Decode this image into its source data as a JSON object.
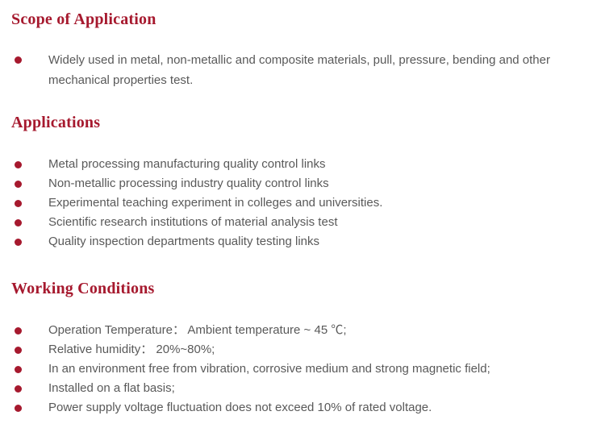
{
  "colors": {
    "heading": "#a6192e",
    "bullet": "#a6192e",
    "body_text": "#595959",
    "page_background": "#ffffff"
  },
  "sections": [
    {
      "heading": "Scope of Application",
      "items": [
        "Widely used in metal, non-metallic and composite materials, pull, pressure, bending and other mechanical properties test."
      ]
    },
    {
      "heading": "Applications",
      "items": [
        "Metal processing manufacturing quality control links",
        "Non-metallic processing industry quality control links",
        "Experimental teaching experiment in colleges and universities.",
        "Scientific research institutions of material analysis test",
        "Quality inspection departments quality testing links"
      ]
    },
    {
      "heading": "Working Conditions",
      "items": [
        "Operation Temperature：  Ambient temperature ~ 45 ℃;",
        "Relative humidity：  20%~80%;",
        "In an environment free from vibration, corrosive medium and strong magnetic field;",
        "Installed on a flat basis;",
        "Power supply voltage fluctuation does not exceed 10% of rated voltage."
      ]
    }
  ]
}
